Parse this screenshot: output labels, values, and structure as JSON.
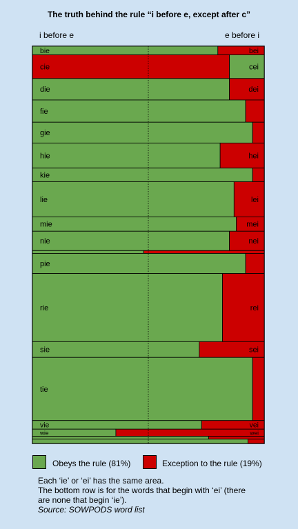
{
  "header": {
    "title": "The truth behind the rule “i before e, except after c”",
    "left_label": "i before e",
    "right_label": "e before i"
  },
  "legend": {
    "obeys": "Obeys the rule (81%)",
    "exception": "Exception to the rule (19%)"
  },
  "colors": {
    "obeys": "#6aa84f",
    "exception": "#cc0000",
    "background": "#cfe2f3"
  },
  "notes": {
    "line1": "Each ‘ie’ or ‘ei’ has the same area.",
    "line2": "The bottom row is for the words that begin with ‘ei’ (there",
    "line3": "are none that begin ‘ie’).",
    "source": "Source: SOWPODS word list"
  },
  "chart_data": {
    "type": "mosaic",
    "note": "each row width split: share of 'ie' (left) vs 'ei' (right); row height proportional to count",
    "rows": [
      {
        "ie_label": "bie",
        "ei_label": "bei",
        "ie_share": 0.8,
        "weight": 1.2,
        "ie_obeys": true
      },
      {
        "ie_label": "cie",
        "ei_label": "cei",
        "ie_share": 0.85,
        "weight": 3.3,
        "ie_obeys": false
      },
      {
        "ie_label": "die",
        "ei_label": "dei",
        "ie_share": 0.85,
        "weight": 3.0,
        "ie_obeys": true
      },
      {
        "ie_label": "fie",
        "ei_label": "",
        "ie_share": 0.92,
        "weight": 3.1,
        "ie_obeys": true
      },
      {
        "ie_label": "gie",
        "ei_label": "",
        "ie_share": 0.95,
        "weight": 2.9,
        "ie_obeys": true
      },
      {
        "ie_label": "hie",
        "ei_label": "hei",
        "ie_share": 0.81,
        "weight": 3.5,
        "ie_obeys": true
      },
      {
        "ie_label": "kie",
        "ei_label": "",
        "ie_share": 0.95,
        "weight": 1.9,
        "ie_obeys": true
      },
      {
        "ie_label": "lie",
        "ei_label": "lei",
        "ie_share": 0.87,
        "weight": 4.9,
        "ie_obeys": true
      },
      {
        "ie_label": "mie",
        "ei_label": "mei",
        "ie_share": 0.88,
        "weight": 2.0,
        "ie_obeys": true
      },
      {
        "ie_label": "nie",
        "ei_label": "nei",
        "ie_share": 0.85,
        "weight": 2.7,
        "ie_obeys": true
      },
      {
        "ie_label": "",
        "ei_label": "",
        "ie_share": 0.48,
        "weight": 0.4,
        "ie_obeys": true
      },
      {
        "ie_label": "pie",
        "ei_label": "",
        "ie_share": 0.92,
        "weight": 2.8,
        "ie_obeys": true
      },
      {
        "ie_label": "rie",
        "ei_label": "rei",
        "ie_share": 0.82,
        "weight": 9.5,
        "ie_obeys": true
      },
      {
        "ie_label": "sie",
        "ei_label": "sei",
        "ie_share": 0.72,
        "weight": 2.2,
        "ie_obeys": true
      },
      {
        "ie_label": "tie",
        "ei_label": "",
        "ie_share": 0.95,
        "weight": 8.8,
        "ie_obeys": true
      },
      {
        "ie_label": "vie",
        "ei_label": "vei",
        "ie_share": 0.73,
        "weight": 1.2,
        "ie_obeys": true
      },
      {
        "ie_label": "wie",
        "ei_label": "wei",
        "ie_share": 0.36,
        "weight": 1.0,
        "ie_obeys": true
      },
      {
        "ie_label": "",
        "ei_label": "",
        "ie_share": 0.76,
        "weight": 0.4,
        "ie_obeys": true
      },
      {
        "ie_label": "",
        "ei_label": "",
        "ie_share": 0.93,
        "weight": 0.6,
        "ie_obeys": true
      }
    ]
  }
}
